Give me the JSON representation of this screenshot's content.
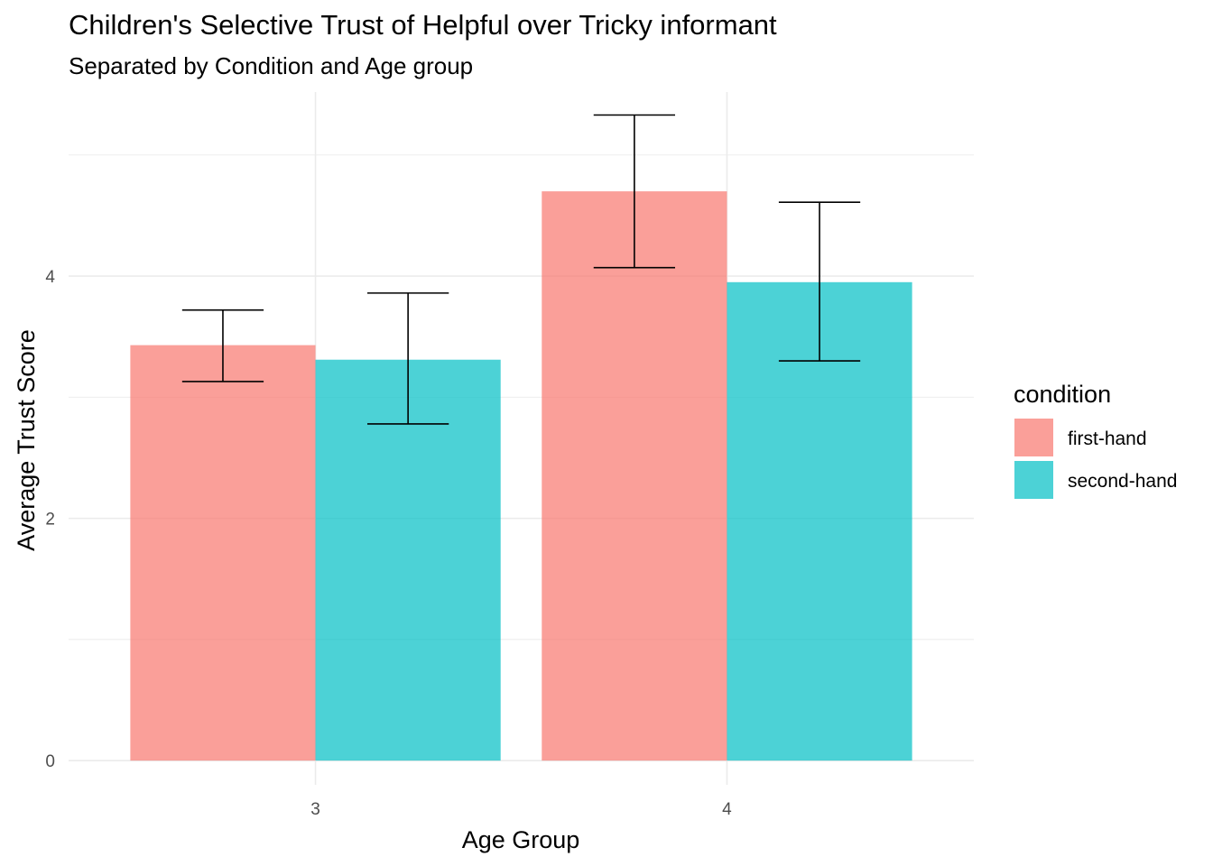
{
  "chart_data": {
    "type": "bar",
    "title": "Children's Selective Trust of Helpful over Tricky informant",
    "subtitle": "Separated by Condition and Age group",
    "xlabel": "Age Group",
    "ylabel": "Average Trust Score",
    "categories": [
      "3",
      "4"
    ],
    "ylim": [
      -0.2,
      5.52
    ],
    "yticks": [
      0,
      2,
      4
    ],
    "grid": true,
    "legend": {
      "title": "condition",
      "placement": "right"
    },
    "series": [
      {
        "name": "first-hand",
        "color": "#F8766D",
        "values": [
          3.43,
          4.7
        ],
        "error_low": [
          3.13,
          4.07
        ],
        "error_high": [
          3.72,
          5.33
        ]
      },
      {
        "name": "second-hand",
        "color": "#00BFC4",
        "values": [
          3.31,
          3.95
        ],
        "error_low": [
          2.78,
          3.3
        ],
        "error_high": [
          3.86,
          4.61
        ]
      }
    ]
  }
}
